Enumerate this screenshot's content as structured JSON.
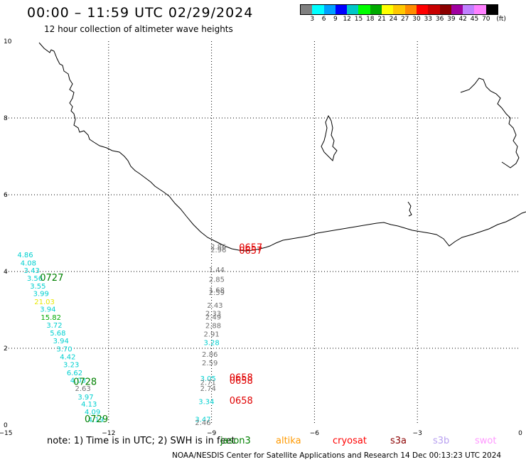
{
  "header": {
    "title": "00:00 – 11:59 UTC 02/29/2024",
    "subtitle": "12 hour collection of altimeter wave heights"
  },
  "colorbar": {
    "unit": "(ft)",
    "colors": [
      "#808080",
      "#00ffff",
      "#00a0ff",
      "#0000ff",
      "#00c8c8",
      "#00ff00",
      "#00aa00",
      "#ffff00",
      "#ffc800",
      "#ff8c00",
      "#ff0000",
      "#c80000",
      "#8b0000",
      "#a000a0",
      "#c080ff",
      "#ff80ff",
      "#000000"
    ],
    "ticks": [
      "3",
      "6",
      "9",
      "12",
      "15",
      "18",
      "21",
      "24",
      "27",
      "30",
      "33",
      "36",
      "39",
      "42",
      "45",
      "70"
    ]
  },
  "map": {
    "x_ticks": [
      "−15",
      "−12",
      "−9",
      "−6",
      "−3",
      "0"
    ],
    "y_ticks": [
      "0",
      "2",
      "4",
      "6",
      "8",
      "10"
    ],
    "wave_labels": [
      {
        "t": "4.86",
        "c": "#00d0d0",
        "x": -14.43,
        "y": 4.37
      },
      {
        "t": "4.08",
        "c": "#00d0d0",
        "x": -14.34,
        "y": 4.16
      },
      {
        "t": "3.43",
        "c": "#00d0d0",
        "x": -14.24,
        "y": 3.96
      },
      {
        "t": "3.56",
        "c": "#00d0d0",
        "x": -14.15,
        "y": 3.76
      },
      {
        "t": "3.55",
        "c": "#00d0d0",
        "x": -14.06,
        "y": 3.56
      },
      {
        "t": "3.99",
        "c": "#00d0d0",
        "x": -13.97,
        "y": 3.36
      },
      {
        "t": "21.03",
        "c": "#e8e800",
        "x": -13.87,
        "y": 3.15
      },
      {
        "t": "3.94",
        "c": "#00d0d0",
        "x": -13.77,
        "y": 2.95
      },
      {
        "t": "15.82",
        "c": "#00aa00",
        "x": -13.68,
        "y": 2.74
      },
      {
        "t": "3.72",
        "c": "#00d0d0",
        "x": -13.58,
        "y": 2.54
      },
      {
        "t": "5.68",
        "c": "#00d0d0",
        "x": -13.48,
        "y": 2.33
      },
      {
        "t": "3.94",
        "c": "#00d0d0",
        "x": -13.39,
        "y": 2.13
      },
      {
        "t": "3.70",
        "c": "#00d0d0",
        "x": -13.29,
        "y": 1.92
      },
      {
        "t": "4.42",
        "c": "#00d0d0",
        "x": -13.19,
        "y": 1.71
      },
      {
        "t": "3.23",
        "c": "#00d0d0",
        "x": -13.09,
        "y": 1.51
      },
      {
        "t": "6.62",
        "c": "#00d0d0",
        "x": -12.99,
        "y": 1.3
      },
      {
        "t": "4.03",
        "c": "#00d0d0",
        "x": -12.89,
        "y": 1.1
      },
      {
        "t": "2.63",
        "c": "#707070",
        "x": -12.75,
        "y": 0.89
      },
      {
        "t": "3.97",
        "c": "#00d0d0",
        "x": -12.67,
        "y": 0.67
      },
      {
        "t": "4.13",
        "c": "#00d0d0",
        "x": -12.57,
        "y": 0.48
      },
      {
        "t": "4.09",
        "c": "#00d0d0",
        "x": -12.47,
        "y": 0.28
      },
      {
        "t": "4.19",
        "c": "#00d0d0",
        "x": -12.37,
        "y": 0.07
      },
      {
        "t": "2.86",
        "c": "#707070",
        "x": -8.8,
        "y": 4.58
      },
      {
        "t": "2.96",
        "c": "#707070",
        "x": -8.8,
        "y": 4.5
      },
      {
        "t": "1.44",
        "c": "#707070",
        "x": -8.85,
        "y": 3.98
      },
      {
        "t": "2.85",
        "c": "#707070",
        "x": -8.85,
        "y": 3.73
      },
      {
        "t": "1.68",
        "c": "#707070",
        "x": -8.85,
        "y": 3.45
      },
      {
        "t": "2.59",
        "c": "#707070",
        "x": -8.85,
        "y": 3.39
      },
      {
        "t": "2.43",
        "c": "#707070",
        "x": -8.9,
        "y": 3.06
      },
      {
        "t": "2.33",
        "c": "#707070",
        "x": -8.95,
        "y": 2.84
      },
      {
        "t": "2.49",
        "c": "#707070",
        "x": -8.95,
        "y": 2.75
      },
      {
        "t": "2.88",
        "c": "#707070",
        "x": -8.95,
        "y": 2.53
      },
      {
        "t": "2.91",
        "c": "#707070",
        "x": -9.0,
        "y": 2.31
      },
      {
        "t": "3.28",
        "c": "#00d0d0",
        "x": -9.0,
        "y": 2.08
      },
      {
        "t": "2.86",
        "c": "#707070",
        "x": -9.05,
        "y": 1.78
      },
      {
        "t": "2.59",
        "c": "#707070",
        "x": -9.05,
        "y": 1.56
      },
      {
        "t": "3.05",
        "c": "#00d0d0",
        "x": -9.1,
        "y": 1.15
      },
      {
        "t": "2.71",
        "c": "#707070",
        "x": -9.1,
        "y": 1.05
      },
      {
        "t": "2.74",
        "c": "#707070",
        "x": -9.1,
        "y": 0.89
      },
      {
        "t": "3.34",
        "c": "#00d0d0",
        "x": -9.15,
        "y": 0.55
      },
      {
        "t": "3.47",
        "c": "#00d0d0",
        "x": -9.25,
        "y": 0.08
      },
      {
        "t": "2.46",
        "c": "#707070",
        "x": -9.25,
        "y": 0.0
      }
    ],
    "time_labels": [
      {
        "t": "0727",
        "c": "#008000",
        "x": -14.0,
        "y": 3.76
      },
      {
        "t": "0728",
        "c": "#008000",
        "x": -13.03,
        "y": 1.05
      },
      {
        "t": "0729",
        "c": "#008000",
        "x": -12.7,
        "y": 0.07
      },
      {
        "t": "0657",
        "c": "#e00000",
        "x": -8.2,
        "y": 4.55
      },
      {
        "t": "0657",
        "c": "#e00000",
        "x": -8.2,
        "y": 4.46
      },
      {
        "t": "0658",
        "c": "#e00000",
        "x": -8.48,
        "y": 1.16
      },
      {
        "t": "0658",
        "c": "#e00000",
        "x": -8.48,
        "y": 1.07
      },
      {
        "t": "0658",
        "c": "#e00000",
        "x": -8.48,
        "y": 0.56
      }
    ]
  },
  "legend": {
    "note": "note: 1) Time is in UTC; 2) SWH is in feet",
    "satellites": [
      {
        "name": "jason3",
        "color": "#008000"
      },
      {
        "name": "altika",
        "color": "#ff9900"
      },
      {
        "name": "cryosat",
        "color": "#ff0000"
      },
      {
        "name": "s3a",
        "color": "#8b0000"
      },
      {
        "name": "s3b",
        "color": "#b8a0f0"
      },
      {
        "name": "swot",
        "color": "#ff99ff"
      }
    ]
  },
  "footer": "NOAA/NESDIS Center for Satellite Applications and Research     14 Dec 00:13:23 UTC 2024"
}
